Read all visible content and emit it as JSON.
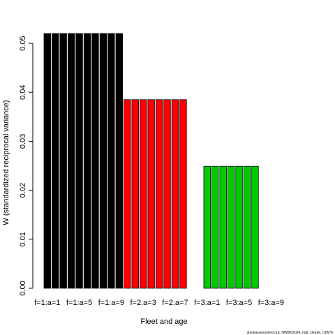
{
  "chart_data": {
    "type": "bar",
    "xlabel": "Fleet and age",
    "ylabel": "W (standardized reciprocal variance)",
    "footnote": "stockassessment.org, NWW02024_had_simple, r16576",
    "categories": [
      "f=1:a=1",
      null,
      null,
      null,
      "f=1:a=5",
      null,
      null,
      null,
      "f=1:a=9",
      null,
      null,
      null,
      "f=2:a=3",
      null,
      null,
      null,
      "f=2:a=7",
      null,
      null,
      null,
      "f=3:a=1",
      null,
      null,
      null,
      "f=3:a=5",
      null,
      null,
      null,
      "f=3:a=9",
      null
    ],
    "series": [
      {
        "color": "#000000",
        "values": [
          0.052,
          0.052,
          0.052,
          0.052,
          0.052,
          0.052,
          0.052,
          0.052,
          0.052,
          0.052,
          null,
          null,
          null,
          null,
          null,
          null,
          null,
          null,
          null,
          null,
          null,
          null,
          null,
          null,
          null,
          null,
          null,
          null,
          null,
          null
        ]
      },
      {
        "color": "#ff0000",
        "values": [
          null,
          null,
          null,
          null,
          null,
          null,
          null,
          null,
          null,
          null,
          0.0385,
          0.0385,
          0.0385,
          0.0385,
          0.0385,
          0.0385,
          0.0385,
          0.0385,
          null,
          null,
          null,
          null,
          null,
          null,
          null,
          null,
          null,
          null,
          null,
          null
        ]
      },
      {
        "color": "#00cd00",
        "values": [
          null,
          null,
          null,
          null,
          null,
          null,
          null,
          null,
          null,
          null,
          null,
          null,
          null,
          null,
          null,
          null,
          null,
          null,
          null,
          null,
          0.0249,
          0.0249,
          0.0249,
          0.0249,
          0.0249,
          0.0249,
          0.0249,
          null,
          null,
          null
        ]
      }
    ],
    "ylim": [
      0,
      0.052
    ],
    "yticks": [
      {
        "value": 0,
        "label": "0.00"
      },
      {
        "value": 0.01,
        "label": "0.01"
      },
      {
        "value": 0.02,
        "label": "0.02"
      },
      {
        "value": 0.03,
        "label": "0.03"
      },
      {
        "value": 0.04,
        "label": "0.04"
      },
      {
        "value": 0.05,
        "label": "0.05"
      }
    ]
  }
}
